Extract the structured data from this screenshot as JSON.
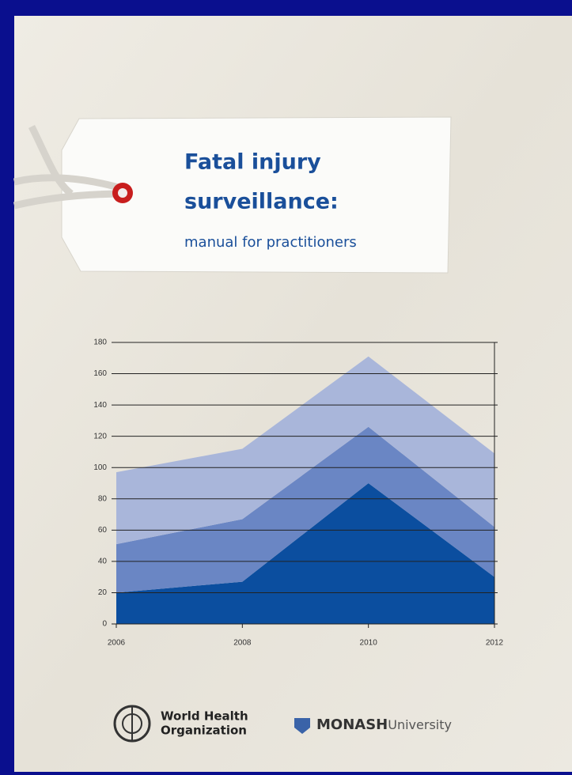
{
  "cover": {
    "title_line1": "Fatal injury",
    "title_line2": "surveillance:",
    "subtitle": "manual for practitioners",
    "logo1_line1": "World Health",
    "logo1_line2": "Organization",
    "logo2_name": "MONASH",
    "logo2_suffix": "University"
  },
  "chart_data": {
    "type": "stacked-area",
    "x": [
      2006,
      2008,
      2010,
      2012
    ],
    "xlim": [
      2006,
      2012
    ],
    "xticks": [
      2006,
      2008,
      2010,
      2012
    ],
    "ylim": [
      0,
      180
    ],
    "yticks": [
      0,
      20,
      40,
      60,
      80,
      100,
      120,
      140,
      160,
      180
    ],
    "grid": true,
    "series": [
      {
        "color": "#0b4e9f",
        "values": [
          20,
          27,
          90,
          30
        ]
      },
      {
        "color": "#6a86c4",
        "values": [
          31,
          40,
          36,
          32
        ]
      },
      {
        "color": "#a9b6da",
        "values": [
          46,
          45,
          45,
          47
        ]
      }
    ]
  }
}
